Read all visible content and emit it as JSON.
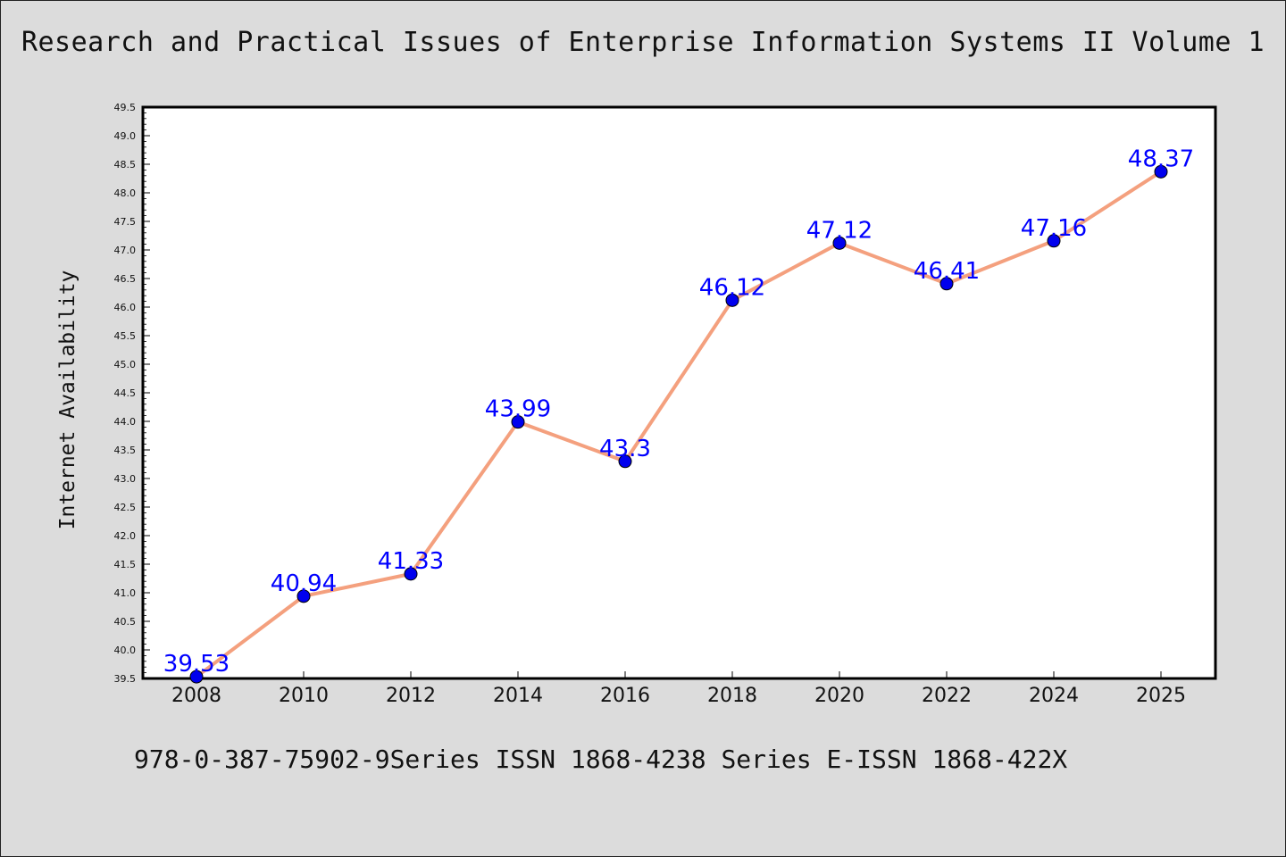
{
  "chart_data": {
    "type": "line",
    "title": "Research and Practical Issues of Enterprise Information Systems II Volume 1",
    "xlabel": "",
    "ylabel": "Internet Availability",
    "categories": [
      "2008",
      "2010",
      "2012",
      "2014",
      "2016",
      "2018",
      "2020",
      "2022",
      "2024",
      "2025"
    ],
    "series": [
      {
        "values": [
          39.53,
          40.94,
          41.33,
          43.99,
          43.3,
          46.12,
          47.12,
          46.41,
          47.16,
          48.37
        ],
        "labels": [
          "39.53",
          "40.94",
          "41.33",
          "43.99",
          "43.3",
          "46.12",
          "47.12",
          "46.41",
          "47.16",
          "48.37"
        ],
        "line_color": "#f4a07e",
        "marker_color": "#0000ee",
        "label_color": "#0000ff"
      }
    ],
    "ylim": [
      39.5,
      49.5
    ],
    "ytick_step": 0.5,
    "grid": false,
    "legend": "none"
  },
  "footer": {
    "text": "978-0-387-75902-9Series ISSN 1868-4238 Series E-ISSN 1868-422X"
  }
}
